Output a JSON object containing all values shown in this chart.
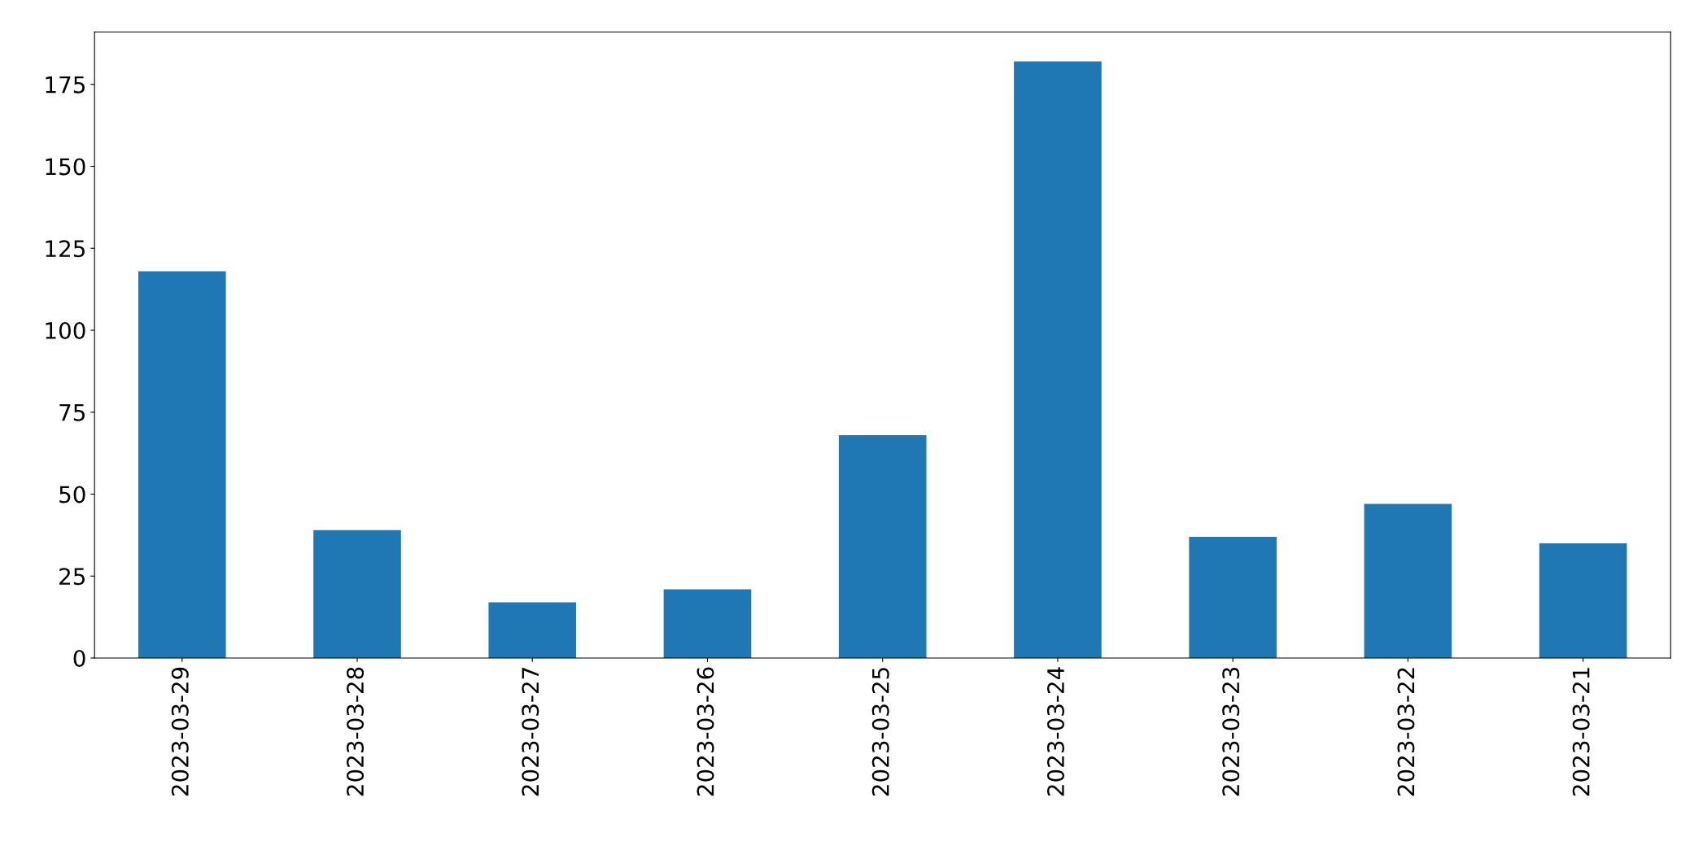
{
  "chart_data": {
    "type": "bar",
    "categories": [
      "2023-03-29",
      "2023-03-28",
      "2023-03-27",
      "2023-03-26",
      "2023-03-25",
      "2023-03-24",
      "2023-03-23",
      "2023-03-22",
      "2023-03-21"
    ],
    "values": [
      118,
      39,
      17,
      21,
      68,
      182,
      37,
      47,
      35
    ],
    "color": "#1f77b4",
    "ylim": [
      0,
      191
    ],
    "yticks": [
      0,
      25,
      50,
      75,
      100,
      125,
      150,
      175
    ],
    "grid": false,
    "legend": false
  }
}
